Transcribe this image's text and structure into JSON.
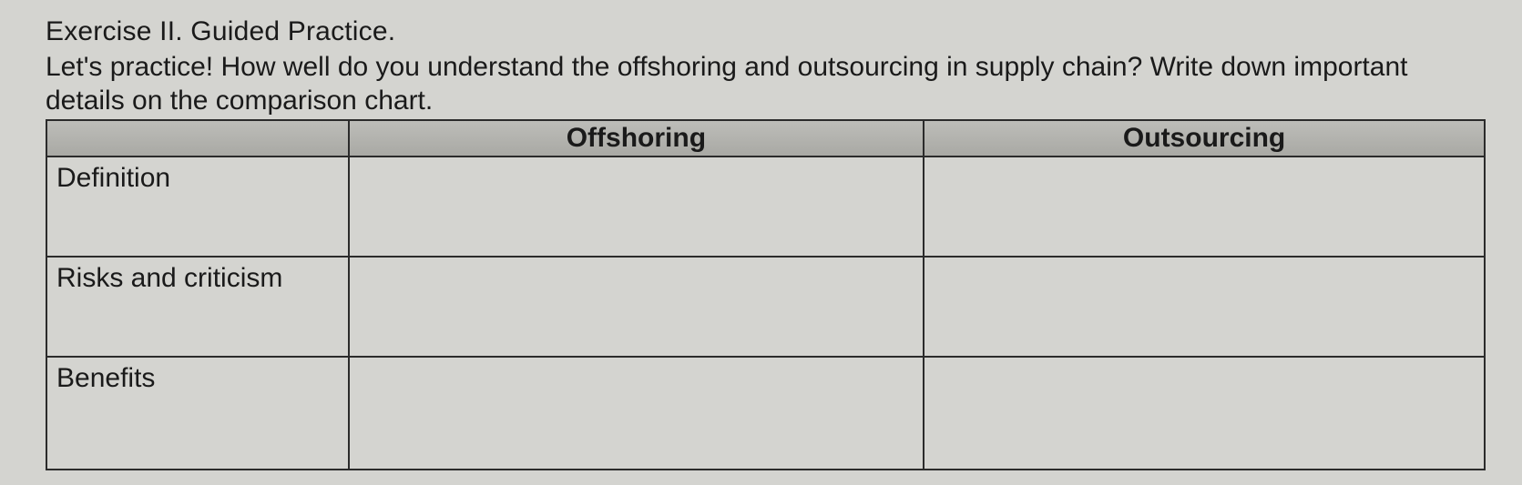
{
  "heading": "Exercise II. Guided Practice.",
  "prompt": "Let's practice! How well do you understand the offshoring and outsourcing in supply chain? Write down important details on the comparison chart.",
  "table": {
    "type": "table",
    "columns": [
      "",
      "Offshoring",
      "Outsourcing"
    ],
    "column_widths_pct": [
      21,
      40,
      39
    ],
    "rows": [
      {
        "label": "Definition",
        "offshoring": "",
        "outsourcing": ""
      },
      {
        "label": "Risks and criticism",
        "offshoring": "",
        "outsourcing": ""
      },
      {
        "label": "Benefits",
        "offshoring": "",
        "outsourcing": ""
      }
    ],
    "header_bg": "#b3b3ae",
    "border_color": "#2b2b2b",
    "background_color": "#d4d4d0",
    "font_family": "Arial",
    "header_fontsize_pt": 22,
    "label_fontsize_pt": 22
  }
}
